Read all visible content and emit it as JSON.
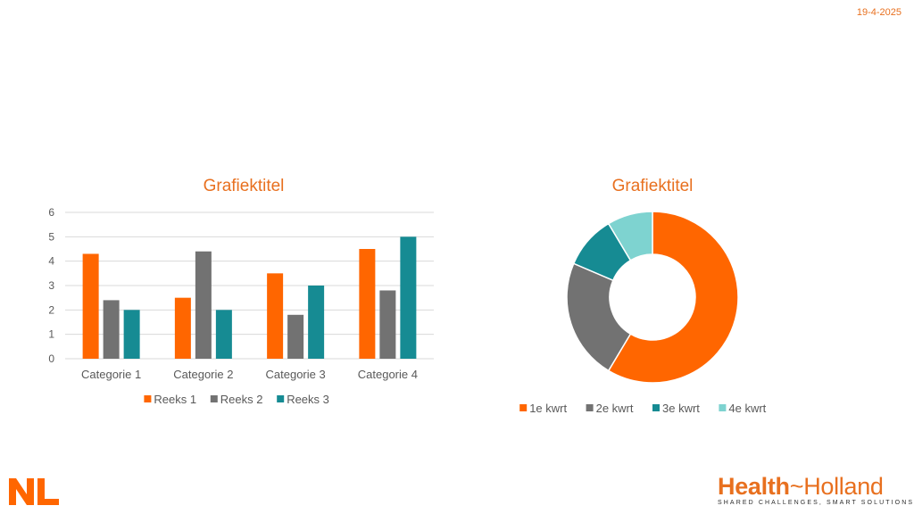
{
  "slide": {
    "date": "19-4-2025"
  },
  "branding": {
    "left_logo_text": "NL",
    "right_logo": {
      "word1": "Health",
      "separator": "~",
      "word2": "Holland",
      "tagline": "SHARED CHALLENGES, SMART SOLUTIONS"
    },
    "colors": {
      "orange": "#FF6600",
      "grey": "#727272",
      "teal": "#168B93",
      "light_teal": "#7ED3D0",
      "title_orange": "#E8701F"
    }
  },
  "chart_data": [
    {
      "type": "bar",
      "title": "Grafiektitel",
      "categories": [
        "Categorie 1",
        "Categorie 2",
        "Categorie 3",
        "Categorie 4"
      ],
      "series": [
        {
          "name": "Reeks 1",
          "values": [
            4.3,
            2.5,
            3.5,
            4.5
          ],
          "color": "#FF6600"
        },
        {
          "name": "Reeks 2",
          "values": [
            2.4,
            4.4,
            1.8,
            2.8
          ],
          "color": "#727272"
        },
        {
          "name": "Reeks 3",
          "values": [
            2,
            2,
            3,
            5
          ],
          "color": "#168B93"
        }
      ],
      "ylim": [
        0,
        6
      ],
      "yticks": [
        "0",
        "1",
        "2",
        "3",
        "4",
        "5",
        "6"
      ],
      "grid": true,
      "legend": "bottom"
    },
    {
      "type": "pie",
      "subtype": "donut",
      "title": "Grafiektitel",
      "labels": [
        "1e kwrt",
        "2e kwrt",
        "3e kwrt",
        "4e kwrt"
      ],
      "values": [
        8.2,
        3.2,
        1.4,
        1.2
      ],
      "colors": [
        "#FF6600",
        "#727272",
        "#168B93",
        "#7ED3D0"
      ],
      "legend": "bottom"
    }
  ]
}
